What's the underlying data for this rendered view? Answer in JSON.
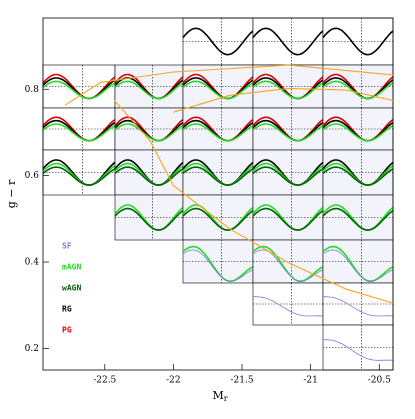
{
  "chart_data": {
    "type": "line",
    "xlabel": "M",
    "xlabel_sub": "r",
    "ylabel": "g − r",
    "xlim": [
      -22.95,
      -20.4
    ],
    "ylim": [
      0.15,
      0.965
    ],
    "xticks": [
      -22.5,
      -22,
      -21.5,
      -21,
      -20.5
    ],
    "yticks": [
      0.2,
      0.4,
      0.6,
      0.8
    ],
    "series": [
      {
        "color": "#f5a623",
        "x": [
          -22.79,
          -22.53,
          -22.0,
          -21.16,
          -20.4
        ],
        "values": [
          0.763,
          0.816,
          0.84,
          0.856,
          0.833
        ]
      },
      {
        "color": "#f5a623",
        "x": [
          -22.43,
          -22.17,
          -22.0,
          -21.59,
          -21.16,
          -20.74,
          -20.4
        ],
        "values": [
          0.774,
          0.681,
          0.577,
          0.477,
          0.398,
          0.337,
          0.305
        ]
      },
      {
        "color": "#f5a623",
        "x": [
          -22.0,
          -21.59,
          -21.16,
          -20.74,
          -20.4
        ],
        "values": [
          0.747,
          0.786,
          0.802,
          0.798,
          0.774
        ]
      }
    ],
    "legend_labels": [
      {
        "text": "SF",
        "color": "#7b7be0"
      },
      {
        "text": "mAGN",
        "color": "#22dd22"
      },
      {
        "text": "wAGN",
        "color": "#006400"
      },
      {
        "text": "RG",
        "color": "#000000"
      },
      {
        "text": "PG",
        "color": "#dd0000"
      }
    ]
  }
}
